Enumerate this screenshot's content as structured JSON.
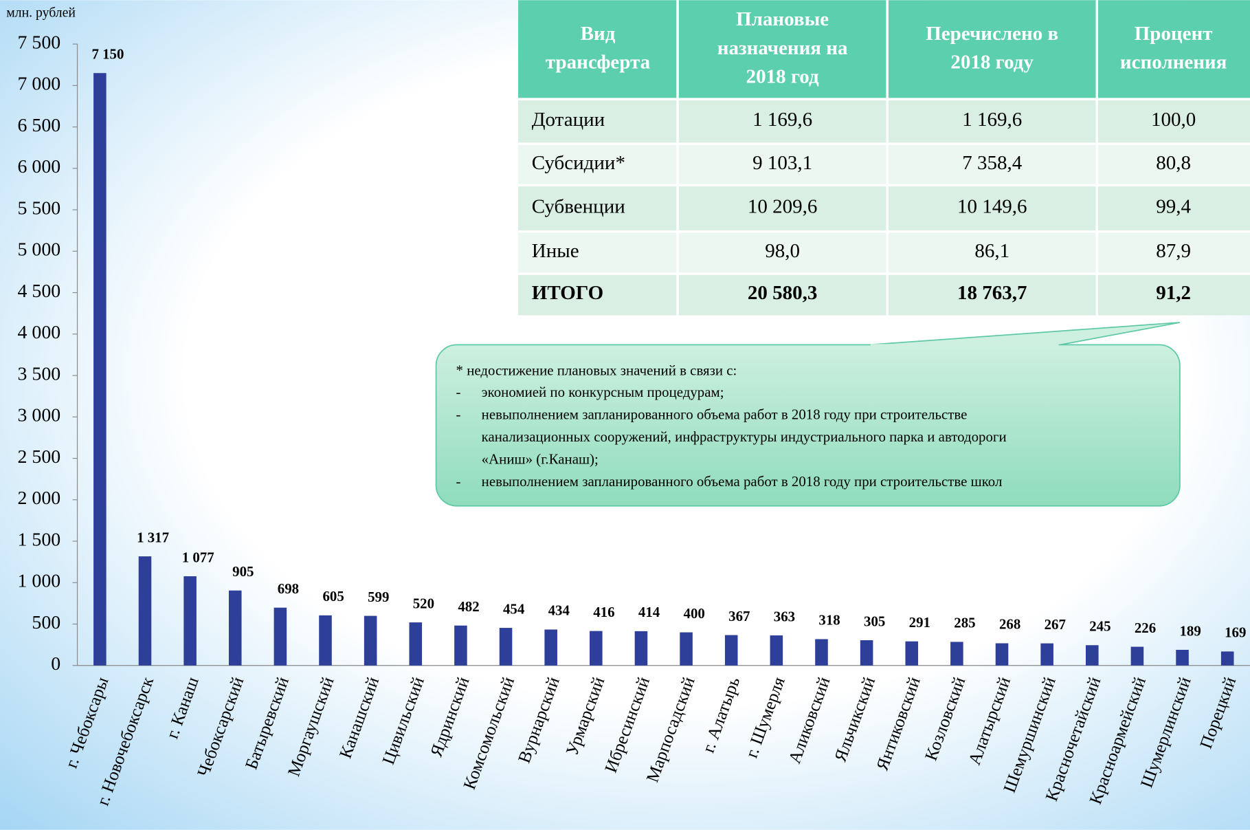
{
  "chart_data": {
    "type": "bar",
    "y_label": "млн. рублей",
    "categories": [
      "г. Чебоксары",
      "г. Новочебоксарск",
      "г. Канаш",
      "Чебоксарский",
      "Батыревский",
      "Моргаушский",
      "Канашский",
      "Цивильский",
      "Ядринский",
      "Комсомольский",
      "Вурнарский",
      "Урмарский",
      "Ибресинский",
      "Марпосадский",
      "г. Алатырь",
      "г. Шумерля",
      "Аликовский",
      "Яльчикский",
      "Янтиковский",
      "Козловский",
      "Алатырский",
      "Шемуршинский",
      "Красночетайский",
      "Красноармейский",
      "Шумерлинский",
      "Порецкий"
    ],
    "values": [
      7150,
      1317,
      1077,
      905,
      698,
      605,
      599,
      520,
      482,
      454,
      434,
      416,
      414,
      400,
      367,
      363,
      318,
      305,
      291,
      285,
      268,
      267,
      245,
      226,
      189,
      169
    ],
    "value_labels": [
      "7 150",
      "1 317",
      "1 077",
      "905",
      "698",
      "605",
      "599",
      "520",
      "482",
      "454",
      "434",
      "416",
      "414",
      "400",
      "367",
      "363",
      "318",
      "305",
      "291",
      "285",
      "268",
      "267",
      "245",
      "226",
      "189",
      "169"
    ],
    "color": "#2e3f9a",
    "ylim": [
      0,
      7500
    ],
    "yticks": [
      0,
      500,
      {
        "value": 1000,
        "label": "1 000"
      },
      {
        "value": 1500,
        "label": "1 500"
      },
      {
        "value": 2000,
        "label": "2 000"
      },
      {
        "value": 2500,
        "label": "2 500"
      },
      {
        "value": 3000,
        "label": "3 000"
      },
      {
        "value": 3500,
        "label": "3 500"
      },
      {
        "value": 4000,
        "label": "4 000"
      },
      {
        "value": 4500,
        "label": "4 500"
      },
      {
        "value": 5000,
        "label": "5 000"
      },
      {
        "value": 5500,
        "label": "5 500"
      },
      {
        "value": 6000,
        "label": "6 000"
      },
      {
        "value": 6500,
        "label": "6 500"
      },
      {
        "value": 7000,
        "label": "7 000"
      },
      {
        "value": 7500,
        "label": "7 500"
      }
    ],
    "grid": false
  },
  "table": {
    "header": [
      [
        "Вид",
        "трансферта"
      ],
      [
        "Плановые",
        "назначения на",
        "2018 год"
      ],
      [
        "Перечислено в",
        "2018 году"
      ],
      [
        "Процент",
        "исполнения"
      ]
    ],
    "rows": [
      [
        "Дотации",
        "1 169,6",
        "1 169,6",
        "100,0"
      ],
      [
        "Субсидии*",
        "9 103,1",
        "7 358,4",
        "80,8"
      ],
      [
        "Субвенции",
        "10 209,6",
        "10 149,6",
        "99,4"
      ],
      [
        "Иные",
        "98,0",
        "86,1",
        "87,9"
      ],
      [
        "ИТОГО",
        "20 580,3",
        "18 763,7",
        "91,2"
      ]
    ]
  },
  "note": {
    "title": "* недостижение плановых значений в связи с:",
    "bullet": "-",
    "items": [
      [
        "экономией по конкурсным процедурам;"
      ],
      [
        "невыполнением запланированного объема работ в 2018 году при строительстве",
        "канализационных сооружений, инфраструктуры индустриального парка и автодороги",
        "«Аниш» (г.Канаш);"
      ],
      [
        "невыполнением запланированного объема работ в 2018 году при строительстве школ"
      ]
    ]
  }
}
